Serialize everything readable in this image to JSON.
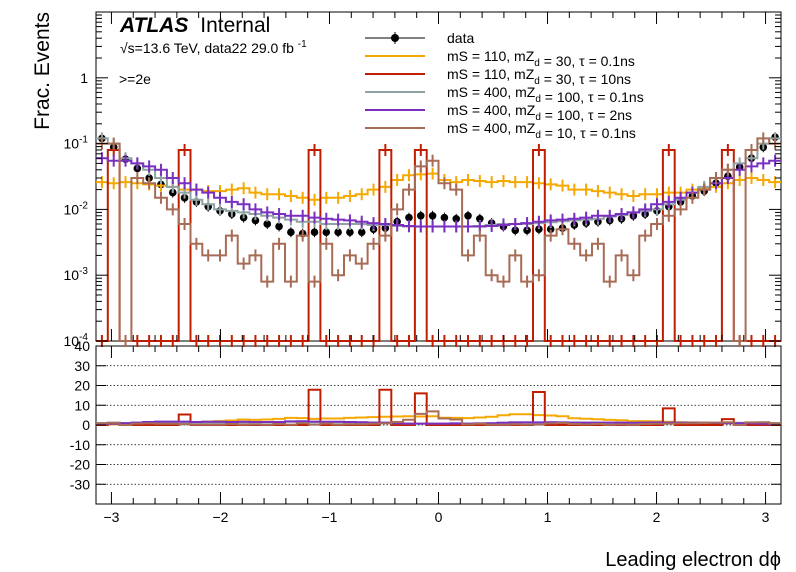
{
  "chart_data": [
    {
      "type": "histogram",
      "panel": "main",
      "ylabel": "Frac. Events",
      "yscale": "log",
      "ylim": [
        0.0001,
        10
      ],
      "xlim": [
        -3.1416,
        3.1416
      ],
      "yticks": [
        {
          "value": 1,
          "label": "1"
        },
        {
          "value": 0.1,
          "label": "10",
          "exp": "-1"
        },
        {
          "value": 0.01,
          "label": "10",
          "exp": "-2"
        },
        {
          "value": 0.001,
          "label": "10",
          "exp": "-3"
        },
        {
          "value": 0.0001,
          "label": "10",
          "exp": "-4"
        }
      ],
      "experiment": "ATLAS",
      "status": "Internal",
      "energy_text": "√s=13.6 TeV, data22 29.0 fb",
      "energy_exp": "-1",
      "selection": ">=2e",
      "series": [
        {
          "name": "data",
          "color": "#000000",
          "style": "points",
          "values": [
            0.12,
            0.088,
            0.058,
            0.042,
            0.03,
            0.024,
            0.018,
            0.015,
            0.013,
            0.011,
            0.0095,
            0.0085,
            0.0075,
            0.0068,
            0.006,
            0.0055,
            0.0045,
            0.0043,
            0.0045,
            0.0045,
            0.0045,
            0.0045,
            0.0045,
            0.005,
            0.0052,
            0.0065,
            0.0075,
            0.008,
            0.008,
            0.0075,
            0.0072,
            0.008,
            0.0072,
            0.0062,
            0.0055,
            0.0048,
            0.0048,
            0.005,
            0.005,
            0.0052,
            0.0058,
            0.0062,
            0.0065,
            0.0068,
            0.0072,
            0.008,
            0.0085,
            0.0095,
            0.011,
            0.013,
            0.016,
            0.019,
            0.025,
            0.032,
            0.044,
            0.06,
            0.088,
            0.125
          ]
        },
        {
          "name": "mS = 110, mZ_d = 30, τ = 0.1ns",
          "color": "#f5a800",
          "style": "step",
          "values": [
            0.026,
            0.025,
            0.026,
            0.025,
            0.024,
            0.023,
            0.022,
            0.02,
            0.02,
            0.019,
            0.019,
            0.02,
            0.021,
            0.018,
            0.017,
            0.017,
            0.016,
            0.015,
            0.014,
            0.015,
            0.015,
            0.016,
            0.017,
            0.02,
            0.022,
            0.028,
            0.033,
            0.034,
            0.035,
            0.028,
            0.026,
            0.028,
            0.027,
            0.026,
            0.027,
            0.026,
            0.026,
            0.025,
            0.024,
            0.023,
            0.02,
            0.02,
            0.019,
            0.018,
            0.017,
            0.016,
            0.017,
            0.017,
            0.018,
            0.018,
            0.02,
            0.021,
            0.022,
            0.025,
            0.028,
            0.03,
            0.028,
            0.026
          ]
        },
        {
          "name": "mS = 110, mZ_d = 30, τ = 10ns",
          "color": "#c01e00",
          "style": "step",
          "values": [
            0.0001,
            0.08,
            0.0001,
            0.0001,
            0.0001,
            0.0001,
            0.0001,
            0.08,
            0.0001,
            0.0001,
            0.0001,
            0.0001,
            0.0001,
            0.0001,
            0.0001,
            0.0001,
            0.0001,
            0.0001,
            0.08,
            0.0001,
            0.0001,
            0.0001,
            0.0001,
            0.0001,
            0.08,
            0.0001,
            0.0001,
            0.08,
            0.0001,
            0.0001,
            0.0001,
            0.0001,
            0.0001,
            0.0001,
            0.0001,
            0.0001,
            0.0001,
            0.08,
            0.0001,
            0.0001,
            0.0001,
            0.0001,
            0.0001,
            0.0001,
            0.0001,
            0.0001,
            0.0001,
            0.0001,
            0.08,
            0.0001,
            0.0001,
            0.0001,
            0.0001,
            0.08,
            0.0001,
            0.0001,
            0.0001,
            0.0001
          ]
        },
        {
          "name": "mS = 400, mZ_d = 100, τ = 0.1ns",
          "color": "#8fa3a3",
          "style": "step",
          "values": [
            0.12,
            0.1,
            0.06,
            0.05,
            0.04,
            0.03,
            0.022,
            0.018,
            0.014,
            0.012,
            0.01,
            0.0095,
            0.009,
            0.0085,
            0.008,
            0.0075,
            0.007,
            0.0065,
            0.0065,
            0.006,
            0.006,
            0.006,
            0.006,
            0.0058,
            0.0058,
            0.0056,
            0.0055,
            0.0055,
            0.0055,
            0.0055,
            0.0055,
            0.0055,
            0.0056,
            0.0058,
            0.006,
            0.006,
            0.006,
            0.0062,
            0.0064,
            0.0066,
            0.0068,
            0.007,
            0.0072,
            0.0078,
            0.0082,
            0.009,
            0.0095,
            0.01,
            0.012,
            0.014,
            0.018,
            0.022,
            0.03,
            0.04,
            0.05,
            0.06,
            0.1,
            0.12
          ]
        },
        {
          "name": "mS = 400, mZ_d = 100, τ = 2ns",
          "color": "#7a2fc0",
          "style": "step",
          "values": [
            0.06,
            0.055,
            0.055,
            0.05,
            0.045,
            0.04,
            0.03,
            0.025,
            0.02,
            0.018,
            0.015,
            0.013,
            0.012,
            0.01,
            0.009,
            0.0085,
            0.008,
            0.008,
            0.0075,
            0.0072,
            0.007,
            0.0068,
            0.0065,
            0.0062,
            0.006,
            0.0058,
            0.0056,
            0.0055,
            0.0055,
            0.0055,
            0.0055,
            0.0055,
            0.0055,
            0.0056,
            0.0058,
            0.006,
            0.0062,
            0.0065,
            0.0068,
            0.007,
            0.0072,
            0.0075,
            0.008,
            0.008,
            0.0085,
            0.009,
            0.01,
            0.012,
            0.013,
            0.015,
            0.018,
            0.02,
            0.025,
            0.03,
            0.04,
            0.045,
            0.05,
            0.055
          ]
        },
        {
          "name": "mS = 400, mZ_d = 10, τ = 0.1ns",
          "color": "#a86b55",
          "style": "step",
          "values": [
            0.1,
            0.1,
            0.0001,
            0.03,
            0.025,
            0.015,
            0.01,
            0.006,
            0.003,
            0.002,
            0.002,
            0.004,
            0.0015,
            0.002,
            0.0008,
            0.003,
            0.0008,
            0.004,
            0.0008,
            0.003,
            0.001,
            0.002,
            0.0015,
            0.003,
            0.004,
            0.01,
            0.02,
            0.045,
            0.055,
            0.025,
            0.02,
            0.002,
            0.004,
            0.001,
            0.0008,
            0.002,
            0.0008,
            0.001,
            0.004,
            0.005,
            0.003,
            0.002,
            0.003,
            0.0008,
            0.002,
            0.001,
            0.004,
            0.006,
            0.008,
            0.01,
            0.015,
            0.02,
            0.03,
            0.04,
            0.0001,
            0.08,
            0.12,
            0.1
          ]
        }
      ]
    },
    {
      "type": "histogram",
      "panel": "ratio",
      "xlabel": "Leading electron dϕ",
      "ylim": [
        -40,
        40
      ],
      "yticks": [
        40,
        30,
        20,
        10,
        0,
        -10,
        -20,
        -30
      ],
      "xticks": [
        -3,
        -2,
        -1,
        0,
        1,
        2,
        3
      ],
      "gridlines": [
        30,
        20,
        10,
        0,
        -10,
        -20,
        -30
      ],
      "series": [
        {
          "name": "mS = 110, mZ_d = 30, τ = 0.1ns",
          "color": "#f5a800",
          "values": [
            0.2,
            0.3,
            0.4,
            0.6,
            0.8,
            1,
            1.2,
            1.3,
            1.5,
            1.7,
            2,
            2.3,
            2.8,
            2.6,
            2.8,
            3.1,
            3.6,
            3.5,
            3.1,
            3.3,
            3.3,
            3.6,
            3.8,
            4,
            4.2,
            4.3,
            4.4,
            4.3,
            4.4,
            3.7,
            3.6,
            3.5,
            3.8,
            4.2,
            4.9,
            5.4,
            5.4,
            5,
            4.8,
            4.4,
            3.4,
            3.2,
            2.9,
            2.6,
            2.4,
            2,
            2,
            1.8,
            1.6,
            1.4,
            1.3,
            1.1,
            0.9,
            0.8,
            0.6,
            0.5,
            0.3,
            0.2
          ]
        },
        {
          "name": "mS = 110, mZ_d = 30, τ = 10ns",
          "color": "#c01e00",
          "values": [
            0,
            0.9,
            0,
            0,
            0,
            0,
            0,
            5.3,
            0,
            0,
            0,
            0,
            0,
            0,
            0,
            0,
            0,
            0,
            17.8,
            0,
            0,
            0,
            0,
            0,
            17.8,
            0,
            0,
            16,
            0,
            0,
            0,
            0,
            0,
            0,
            0,
            0,
            0,
            16.7,
            0,
            0,
            0,
            0,
            0,
            0,
            0,
            0,
            0,
            0,
            8.4,
            0,
            0,
            0,
            0,
            3,
            0,
            0,
            0,
            0
          ]
        },
        {
          "name": "mS = 400, mZ_d = 100, τ = 0.1ns",
          "color": "#8fa3a3",
          "values": [
            1,
            1.1,
            1,
            1.2,
            1.3,
            1.2,
            1.2,
            1.2,
            1.1,
            1.1,
            1.1,
            1.1,
            1.2,
            1.3,
            1.3,
            1.4,
            1.6,
            1.5,
            1.4,
            1.3,
            1.3,
            1.3,
            1.3,
            1.2,
            1.1,
            0.9,
            0.7,
            0.7,
            0.7,
            0.7,
            0.8,
            0.7,
            0.8,
            0.9,
            1.1,
            1.3,
            1.3,
            1.2,
            1.3,
            1.3,
            1.2,
            1.1,
            1.1,
            1.1,
            1.1,
            1.1,
            1.1,
            1.1,
            1.1,
            1.1,
            1.1,
            1.2,
            1.2,
            1.3,
            1.1,
            1,
            1.1,
            1
          ]
        },
        {
          "name": "mS = 400, mZ_d = 100, τ = 2ns",
          "color": "#7a2fc0",
          "values": [
            0.5,
            0.6,
            0.9,
            1.2,
            1.5,
            1.7,
            1.7,
            1.7,
            1.5,
            1.6,
            1.6,
            1.5,
            1.6,
            1.5,
            1.5,
            1.5,
            1.8,
            1.9,
            1.7,
            1.6,
            1.6,
            1.5,
            1.4,
            1.2,
            1.2,
            0.9,
            0.7,
            0.7,
            0.7,
            0.7,
            0.8,
            0.7,
            0.8,
            0.9,
            1.1,
            1.3,
            1.3,
            1.3,
            1.4,
            1.3,
            1.2,
            1.2,
            1.2,
            1.2,
            1.2,
            1.1,
            1.2,
            1.3,
            1.2,
            1.2,
            1.1,
            1.1,
            1,
            0.9,
            0.9,
            0.8,
            0.6,
            0.4
          ]
        },
        {
          "name": "mS = 400, mZ_d = 10, τ = 0.1ns",
          "color": "#a86b55",
          "values": [
            0.8,
            1.1,
            0,
            0.7,
            0.8,
            0.6,
            0.6,
            0.4,
            0.2,
            0.2,
            0.2,
            0.5,
            0.2,
            0.3,
            0.1,
            0.5,
            0.2,
            0.9,
            0.2,
            0.7,
            0.2,
            0.4,
            0.3,
            0.6,
            0.8,
            1.5,
            2.7,
            5.6,
            6.9,
            3.3,
            2.8,
            0.3,
            0.6,
            0.2,
            0.1,
            0.4,
            0.2,
            0.2,
            0.8,
            1,
            0.5,
            0.3,
            0.5,
            0.1,
            0.3,
            0.1,
            0.5,
            0.6,
            0.7,
            0.8,
            0.9,
            1.1,
            1.2,
            1.3,
            0,
            1.3,
            1.4,
            0.8
          ]
        }
      ]
    }
  ]
}
